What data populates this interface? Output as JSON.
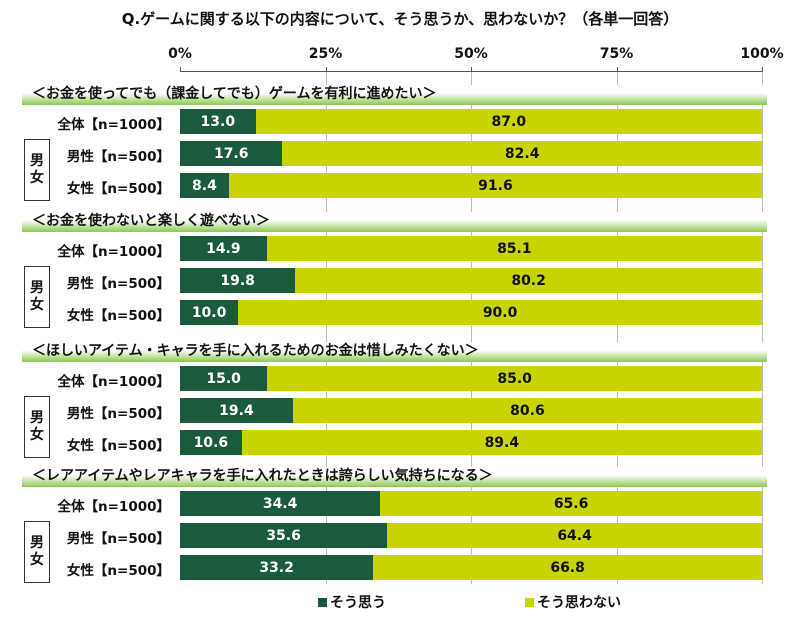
{
  "chart_data": {
    "type": "bar",
    "stacked": true,
    "orientation": "horizontal",
    "title": "Q.ゲームに関する以下の内容について、そう思うか、思わないか？（各単一回答）",
    "xlim": [
      0,
      100
    ],
    "x_ticks": [
      "0%",
      "25%",
      "50%",
      "75%",
      "100%"
    ],
    "legend": {
      "placement": "bottom",
      "entries": [
        "そう思う",
        "そう思わない"
      ]
    },
    "colors": {
      "agree": "#1b5a3c",
      "disagree": "#c8d400"
    },
    "group_label": "男女",
    "row_labels": [
      "全体【n=1000】",
      "男性【n=500】",
      "女性【n=500】"
    ],
    "sections": [
      {
        "title": "＜お金を使ってでも（課金してでも）ゲームを有利に進めたい＞",
        "agree": [
          "13.0",
          "17.6",
          "8.4"
        ],
        "disagree": [
          "87.0",
          "82.4",
          "91.6"
        ]
      },
      {
        "title": "＜お金を使わないと楽しく遊べない＞",
        "agree": [
          "14.9",
          "19.8",
          "10.0"
        ],
        "disagree": [
          "85.1",
          "80.2",
          "90.0"
        ]
      },
      {
        "title": "＜ほしいアイテム・キャラを手に入れるためのお金は惜しみたくない＞",
        "agree": [
          "15.0",
          "19.4",
          "10.6"
        ],
        "disagree": [
          "85.0",
          "80.6",
          "89.4"
        ]
      },
      {
        "title": "＜レアアイテムやレアキャラを手に入れたときは誇らしい気持ちになる＞",
        "agree": [
          "34.4",
          "35.6",
          "33.2"
        ],
        "disagree": [
          "65.6",
          "64.4",
          "66.8"
        ]
      }
    ]
  }
}
